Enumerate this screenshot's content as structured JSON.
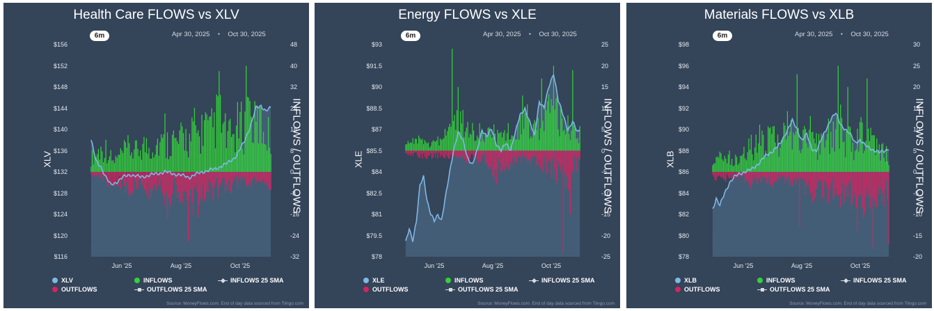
{
  "common": {
    "range_button": "6m",
    "date_from": "Apr 30, 2025",
    "date_sep": "•",
    "date_to": "Oct 30, 2025",
    "right_axis_label": "INFLOWS / OUTFLOWS",
    "x_ticks": [
      "Jun '25",
      "Aug '25",
      "Oct '25"
    ],
    "legend": {
      "inflows": "INFLOWS",
      "outflows": "OUTFLOWS",
      "inflows_sma": "INFLOWS 25 SMA",
      "outflows_sma": "OUTFLOWS 25 SMA"
    },
    "source": "Source: MoneyFlows.com. End of day data sourced from Tiingo.com",
    "colors": {
      "panel_bg": "#344459",
      "price_line": "#7fb8e6",
      "inflows": "#33d13a",
      "outflows": "#d3245f",
      "text": "#ffffff"
    }
  },
  "chart_data": [
    {
      "type": "bar+line",
      "title": "Health Care FLOWS vs XLV",
      "ticker": "XLV",
      "ylabel": "XLV",
      "y2label": "INFLOWS / OUTFLOWS",
      "date_range": [
        "Apr 30, 2025",
        "Oct 30, 2025"
      ],
      "price_ylim": [
        116,
        156
      ],
      "price_ticks": [
        "$156",
        "$152",
        "$148",
        "$144",
        "$140",
        "$136",
        "$132",
        "$128",
        "$124",
        "$120",
        "$116"
      ],
      "flow_ylim": [
        -32,
        48
      ],
      "flow_ticks": [
        "48",
        "40",
        "32",
        "24",
        "16",
        "8",
        "0",
        "-8",
        "-16",
        "-24",
        "-32"
      ],
      "x_ticks": [
        "Jun '25",
        "Aug '25",
        "Oct '25"
      ],
      "price_points": [
        [
          0,
          138
        ],
        [
          4,
          134
        ],
        [
          8,
          133
        ],
        [
          12,
          131
        ],
        [
          16,
          129.5
        ],
        [
          20,
          130
        ],
        [
          26,
          131
        ],
        [
          32,
          131.5
        ],
        [
          40,
          131
        ],
        [
          50,
          131.5
        ],
        [
          60,
          132
        ],
        [
          70,
          131.5
        ],
        [
          80,
          131
        ],
        [
          90,
          132
        ],
        [
          100,
          132.5
        ],
        [
          110,
          133.5
        ],
        [
          118,
          135
        ],
        [
          124,
          137.5
        ],
        [
          130,
          141
        ],
        [
          134,
          144
        ],
        [
          138,
          144.5
        ],
        [
          142,
          143.5
        ],
        [
          146,
          144
        ]
      ],
      "inflow_env": [
        [
          0,
          8
        ],
        [
          6,
          12
        ],
        [
          12,
          14
        ],
        [
          18,
          6
        ],
        [
          24,
          10
        ],
        [
          30,
          14
        ],
        [
          36,
          12
        ],
        [
          42,
          16
        ],
        [
          48,
          14
        ],
        [
          54,
          18
        ],
        [
          60,
          16
        ],
        [
          66,
          20
        ],
        [
          70,
          16
        ],
        [
          76,
          22
        ],
        [
          80,
          18
        ],
        [
          84,
          26
        ],
        [
          88,
          20
        ],
        [
          92,
          30
        ],
        [
          96,
          22
        ],
        [
          100,
          28
        ],
        [
          104,
          34
        ],
        [
          108,
          24
        ],
        [
          112,
          20
        ],
        [
          116,
          22
        ],
        [
          120,
          28
        ],
        [
          124,
          26
        ],
        [
          128,
          36
        ],
        [
          132,
          26
        ],
        [
          136,
          30
        ],
        [
          140,
          26
        ],
        [
          144,
          22
        ],
        [
          146,
          18
        ]
      ],
      "outflow_env": [
        [
          0,
          -2
        ],
        [
          8,
          -4
        ],
        [
          16,
          -6
        ],
        [
          24,
          -8
        ],
        [
          32,
          -10
        ],
        [
          40,
          -6
        ],
        [
          48,
          -12
        ],
        [
          56,
          -8
        ],
        [
          62,
          -16
        ],
        [
          68,
          -8
        ],
        [
          74,
          -14
        ],
        [
          78,
          -20
        ],
        [
          82,
          -22
        ],
        [
          86,
          -18
        ],
        [
          90,
          -14
        ],
        [
          94,
          -10
        ],
        [
          100,
          -12
        ],
        [
          106,
          -8
        ],
        [
          112,
          -10
        ],
        [
          118,
          -6
        ],
        [
          124,
          -8
        ],
        [
          130,
          -6
        ],
        [
          136,
          -4
        ],
        [
          140,
          -6
        ],
        [
          144,
          -8
        ],
        [
          146,
          -14
        ]
      ],
      "inflow_spikes": [
        [
          60,
          22
        ],
        [
          104,
          38
        ],
        [
          126,
          40
        ],
        [
          128,
          28
        ]
      ],
      "outflow_spikes": [
        [
          79,
          -26
        ],
        [
          62,
          -18
        ]
      ]
    },
    {
      "type": "bar+line",
      "title": "Energy FLOWS vs XLE",
      "ticker": "XLE",
      "ylabel": "XLE",
      "y2label": "INFLOWS / OUTFLOWS",
      "date_range": [
        "Apr 30, 2025",
        "Oct 30, 2025"
      ],
      "price_ylim": [
        78,
        93
      ],
      "price_ticks": [
        "$93",
        "$91.5",
        "$90",
        "$88.5",
        "$87",
        "$85.5",
        "$84",
        "$82.5",
        "$81",
        "$79.5",
        "$78"
      ],
      "flow_ylim": [
        -25,
        25
      ],
      "flow_ticks": [
        "25",
        "20",
        "15",
        "10",
        "5",
        "0",
        "-5",
        "-10",
        "-15",
        "-20",
        "-25"
      ],
      "x_ticks": [
        "Jun '25",
        "Aug '25",
        "Oct '25"
      ],
      "price_points": [
        [
          0,
          79
        ],
        [
          3,
          80
        ],
        [
          6,
          79.2
        ],
        [
          9,
          80.5
        ],
        [
          12,
          83
        ],
        [
          15,
          83.7
        ],
        [
          18,
          82
        ],
        [
          21,
          81
        ],
        [
          24,
          80.5
        ],
        [
          27,
          81
        ],
        [
          30,
          80.6
        ],
        [
          33,
          82
        ],
        [
          36,
          83.5
        ],
        [
          40,
          85.5
        ],
        [
          44,
          86.8
        ],
        [
          48,
          86.2
        ],
        [
          52,
          85
        ],
        [
          56,
          84.5
        ],
        [
          60,
          85.5
        ],
        [
          64,
          87
        ],
        [
          68,
          86.5
        ],
        [
          72,
          87
        ],
        [
          76,
          86
        ],
        [
          80,
          85.5
        ],
        [
          84,
          86
        ],
        [
          88,
          85.6
        ],
        [
          92,
          86.8
        ],
        [
          96,
          88
        ],
        [
          100,
          88.5
        ],
        [
          104,
          87.5
        ],
        [
          108,
          86.5
        ],
        [
          112,
          89
        ],
        [
          116,
          88.5
        ],
        [
          120,
          90
        ],
        [
          124,
          91
        ],
        [
          128,
          89
        ],
        [
          132,
          88
        ],
        [
          136,
          87
        ],
        [
          140,
          87.5
        ],
        [
          144,
          86.8
        ],
        [
          146,
          87
        ]
      ],
      "inflow_env": [
        [
          0,
          2
        ],
        [
          10,
          4
        ],
        [
          20,
          2
        ],
        [
          30,
          5
        ],
        [
          36,
          8
        ],
        [
          42,
          12
        ],
        [
          48,
          10
        ],
        [
          54,
          6
        ],
        [
          60,
          9
        ],
        [
          66,
          4
        ],
        [
          72,
          7
        ],
        [
          78,
          5
        ],
        [
          84,
          6
        ],
        [
          90,
          8
        ],
        [
          96,
          10
        ],
        [
          102,
          12
        ],
        [
          108,
          8
        ],
        [
          114,
          10
        ],
        [
          120,
          14
        ],
        [
          126,
          18
        ],
        [
          130,
          12
        ],
        [
          136,
          10
        ],
        [
          140,
          8
        ],
        [
          146,
          6
        ]
      ],
      "outflow_env": [
        [
          0,
          -1
        ],
        [
          12,
          -2
        ],
        [
          24,
          -2
        ],
        [
          36,
          -2
        ],
        [
          48,
          -2
        ],
        [
          56,
          -4
        ],
        [
          62,
          -3
        ],
        [
          70,
          -5
        ],
        [
          76,
          -8
        ],
        [
          84,
          -6
        ],
        [
          92,
          -3
        ],
        [
          100,
          -3
        ],
        [
          108,
          -4
        ],
        [
          116,
          -6
        ],
        [
          124,
          -8
        ],
        [
          130,
          -10
        ],
        [
          136,
          -12
        ],
        [
          140,
          -6
        ],
        [
          146,
          -4
        ]
      ],
      "inflow_spikes": [
        [
          39,
          24
        ],
        [
          44,
          15
        ],
        [
          98,
          13
        ],
        [
          114,
          17
        ],
        [
          124,
          20
        ],
        [
          140,
          19
        ]
      ],
      "outflow_spikes": [
        [
          132,
          -24
        ],
        [
          138,
          -15
        ]
      ]
    },
    {
      "type": "bar+line",
      "title": "Materials FLOWS vs XLB",
      "ticker": "XLB",
      "ylabel": "XLB",
      "y2label": "INFLOWS / OUTFLOWS",
      "date_range": [
        "Apr 30, 2025",
        "Oct 30, 2025"
      ],
      "price_ylim": [
        78,
        98
      ],
      "price_ticks": [
        "$98",
        "$96",
        "$94",
        "$92",
        "$90",
        "$88",
        "$86",
        "$84",
        "$82",
        "$80",
        "$78"
      ],
      "flow_ylim": [
        -20,
        30
      ],
      "flow_ticks": [
        "30",
        "25",
        "20",
        "15",
        "10",
        "5",
        "0",
        "-5",
        "-10",
        "-15",
        "-20"
      ],
      "x_ticks": [
        "Jun '25",
        "Aug '25",
        "Oct '25"
      ],
      "price_points": [
        [
          0,
          82.5
        ],
        [
          3,
          83.5
        ],
        [
          6,
          82.8
        ],
        [
          10,
          84
        ],
        [
          14,
          85
        ],
        [
          18,
          85.5
        ],
        [
          22,
          85.8
        ],
        [
          26,
          86
        ],
        [
          32,
          86.2
        ],
        [
          38,
          86.8
        ],
        [
          44,
          87.5
        ],
        [
          50,
          88
        ],
        [
          56,
          88.6
        ],
        [
          62,
          90
        ],
        [
          66,
          90.8
        ],
        [
          70,
          90
        ],
        [
          74,
          89
        ],
        [
          78,
          89.5
        ],
        [
          82,
          88.2
        ],
        [
          86,
          88
        ],
        [
          90,
          89
        ],
        [
          94,
          90
        ],
        [
          98,
          91
        ],
        [
          102,
          91.5
        ],
        [
          106,
          90.5
        ],
        [
          110,
          90
        ],
        [
          114,
          89.5
        ],
        [
          118,
          88.8
        ],
        [
          122,
          89
        ],
        [
          126,
          88.5
        ],
        [
          130,
          88.3
        ],
        [
          134,
          88
        ],
        [
          138,
          87.8
        ],
        [
          142,
          88
        ],
        [
          146,
          88.2
        ]
      ],
      "inflow_env": [
        [
          0,
          4
        ],
        [
          10,
          6
        ],
        [
          20,
          4
        ],
        [
          30,
          8
        ],
        [
          38,
          12
        ],
        [
          44,
          10
        ],
        [
          50,
          14
        ],
        [
          56,
          10
        ],
        [
          62,
          16
        ],
        [
          68,
          12
        ],
        [
          74,
          10
        ],
        [
          80,
          14
        ],
        [
          86,
          10
        ],
        [
          92,
          12
        ],
        [
          98,
          14
        ],
        [
          104,
          18
        ],
        [
          110,
          12
        ],
        [
          116,
          10
        ],
        [
          122,
          14
        ],
        [
          128,
          12
        ],
        [
          134,
          10
        ],
        [
          140,
          8
        ],
        [
          146,
          6
        ]
      ],
      "outflow_env": [
        [
          0,
          -2
        ],
        [
          10,
          -3
        ],
        [
          20,
          -2
        ],
        [
          30,
          -4
        ],
        [
          40,
          -3
        ],
        [
          50,
          -4
        ],
        [
          60,
          -3
        ],
        [
          70,
          -5
        ],
        [
          78,
          -6
        ],
        [
          86,
          -8
        ],
        [
          94,
          -7
        ],
        [
          102,
          -9
        ],
        [
          110,
          -8
        ],
        [
          118,
          -10
        ],
        [
          126,
          -12
        ],
        [
          132,
          -10
        ],
        [
          138,
          -8
        ],
        [
          144,
          -9
        ],
        [
          146,
          -10
        ]
      ],
      "inflow_spikes": [
        [
          70,
          23
        ],
        [
          104,
          25
        ],
        [
          112,
          20
        ],
        [
          128,
          22
        ]
      ],
      "outflow_spikes": [
        [
          72,
          -13
        ],
        [
          120,
          -14
        ],
        [
          133,
          -18
        ],
        [
          146,
          -17
        ]
      ]
    }
  ]
}
